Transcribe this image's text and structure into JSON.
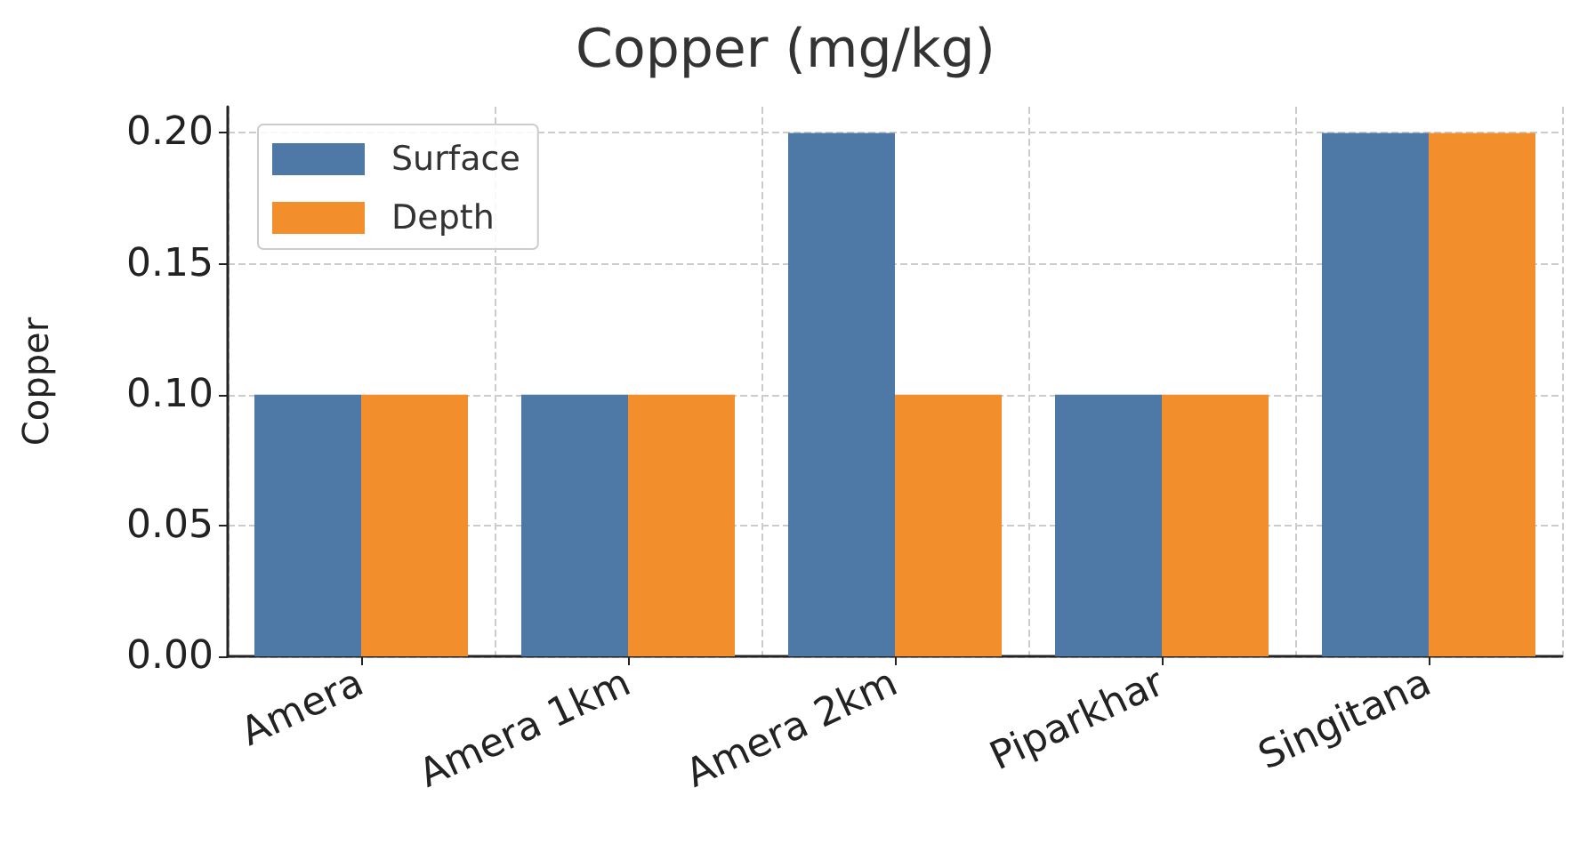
{
  "chart_data": {
    "type": "bar",
    "title": "Copper (mg/kg)",
    "ylabel": "Copper",
    "categories": [
      "Amera",
      "Amera 1km",
      "Amera 2km",
      "Piparkhar",
      "Singitana"
    ],
    "series": [
      {
        "name": "Surface",
        "color": "#4e79a7",
        "values": [
          0.1,
          0.1,
          0.2,
          0.1,
          0.2
        ]
      },
      {
        "name": "Depth",
        "color": "#f28e2b",
        "values": [
          0.1,
          0.1,
          0.1,
          0.1,
          0.2
        ]
      }
    ],
    "ylim": [
      0,
      0.21
    ],
    "yticks": [
      {
        "value": 0,
        "label": "0.00"
      },
      {
        "value": 0.05,
        "label": "0.05"
      },
      {
        "value": 0.1,
        "label": "0.10"
      },
      {
        "value": 0.15,
        "label": "0.15"
      },
      {
        "value": 0.2,
        "label": "0.20"
      }
    ],
    "grid": true,
    "legend": "top left"
  }
}
